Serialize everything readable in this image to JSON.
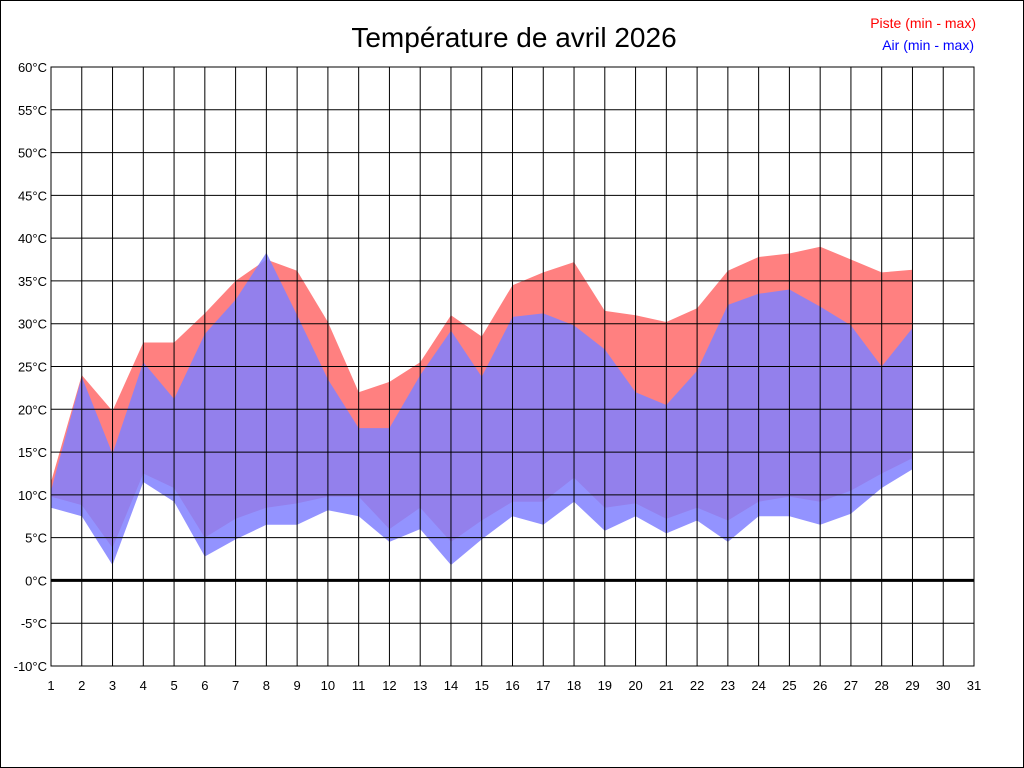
{
  "chart_data": {
    "type": "area",
    "title": "Température de avril 2026",
    "xlabel": "",
    "ylabel": "",
    "grid": true,
    "legend_position": "top-right",
    "ylim": [
      -10,
      60
    ],
    "xlim": [
      1,
      31
    ],
    "y_tick_labels": [
      "60°C",
      "55°C",
      "50°C",
      "45°C",
      "40°C",
      "35°C",
      "30°C",
      "25°C",
      "20°C",
      "15°C",
      "10°C",
      "5°C",
      "0°C",
      "-5°C",
      "-10°C"
    ],
    "y_ticks": [
      60,
      55,
      50,
      45,
      40,
      35,
      30,
      25,
      20,
      15,
      10,
      5,
      0,
      -5,
      -10
    ],
    "x_ticks": [
      1,
      2,
      3,
      4,
      5,
      6,
      7,
      8,
      9,
      10,
      11,
      12,
      13,
      14,
      15,
      16,
      17,
      18,
      19,
      20,
      21,
      22,
      23,
      24,
      25,
      26,
      27,
      28,
      29,
      30,
      31
    ],
    "x_tick_labels": [
      "1",
      "2",
      "3",
      "4",
      "5",
      "6",
      "7",
      "8",
      "9",
      "10",
      "11",
      "12",
      "13",
      "14",
      "15",
      "16",
      "17",
      "18",
      "19",
      "20",
      "21",
      "22",
      "23",
      "24",
      "25",
      "26",
      "27",
      "28",
      "29",
      "30",
      "31"
    ],
    "x": [
      1,
      2,
      3,
      4,
      5,
      6,
      7,
      8,
      9,
      10,
      11,
      12,
      13,
      14,
      15,
      16,
      17,
      18,
      19,
      20,
      21,
      22,
      23,
      24,
      25,
      26,
      27,
      28,
      29
    ],
    "series": [
      {
        "name": "Piste (min - max)",
        "color": "#ff8080",
        "min": [
          9.8,
          8.8,
          3.8,
          12.5,
          10.8,
          5.0,
          7.2,
          8.5,
          9.0,
          9.8,
          9.8,
          6.0,
          8.5,
          4.5,
          7.0,
          9.2,
          9.2,
          12.0,
          8.5,
          9.0,
          7.2,
          8.5,
          7.0,
          9.2,
          9.8,
          9.2,
          10.5,
          12.5,
          14.3
        ],
        "max": [
          11.5,
          24.0,
          19.8,
          27.8,
          27.8,
          31.2,
          35.0,
          37.5,
          36.2,
          30.2,
          22.0,
          23.2,
          25.5,
          31.0,
          28.5,
          34.5,
          36.0,
          37.2,
          31.5,
          31.0,
          30.2,
          31.8,
          36.2,
          37.8,
          38.2,
          39.0,
          37.5,
          36.0,
          36.3
        ]
      },
      {
        "name": "Air (min - max)",
        "color": "#8080ff",
        "min": [
          8.5,
          7.5,
          1.8,
          11.5,
          9.2,
          2.8,
          4.8,
          6.5,
          6.5,
          8.2,
          7.5,
          4.5,
          6.0,
          1.8,
          4.8,
          7.5,
          6.5,
          9.2,
          5.8,
          7.5,
          5.5,
          7.0,
          4.5,
          7.5,
          7.5,
          6.5,
          7.8,
          10.8,
          13.0
        ],
        "max": [
          10.5,
          23.8,
          14.8,
          25.5,
          21.2,
          28.8,
          32.8,
          38.3,
          31.0,
          23.5,
          17.8,
          17.8,
          24.0,
          29.2,
          23.8,
          30.8,
          31.2,
          29.8,
          27.0,
          22.0,
          20.5,
          24.5,
          32.2,
          33.5,
          34.0,
          32.0,
          29.8,
          25.0,
          29.5
        ]
      }
    ]
  }
}
